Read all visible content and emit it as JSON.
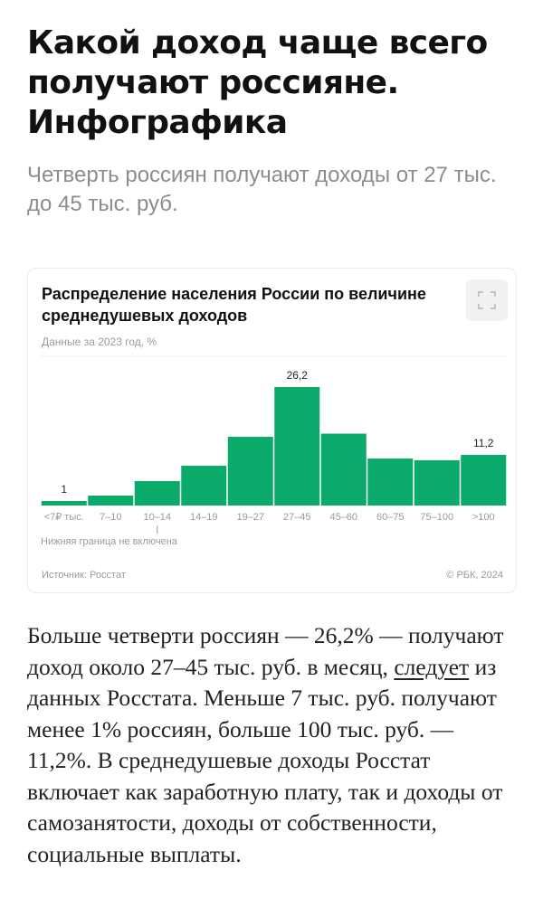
{
  "article": {
    "headline": "Какой доход чаще всего получают россияне. Инфографика",
    "lead": "Четверть россиян получают доходы от 27 тыс. до 45 тыс. руб.",
    "body_before_link": "Больше четверти россиян — 26,2% — получают доход около 27–45 тыс. руб. в месяц, ",
    "body_link": "следует",
    "body_after_link": " из данных Росстата. Меньше 7 тыс. руб. получают менее 1% россиян, больше 100 тыс. руб. — 11,2%. В среднедушевые доходы Росстат включает как заработную плату, так и доходы от самозанятости, доходы от собственности, социальные выплаты."
  },
  "card": {
    "title": "Распределение населения России по величине среднедушевых доходов",
    "subtitle": "Данные за 2023 год, %",
    "note": "Нижняя граница не включена",
    "source": "Источник: Росстат",
    "copyright": "© РБК, 2024",
    "expand_icon": "expand-icon"
  },
  "chart_data": {
    "type": "bar",
    "title": "Распределение населения России по величине среднедушевых доходов",
    "subtitle": "Данные за 2023 год, %",
    "categories": [
      "<7₽ тыс.",
      "7–10",
      "10–14",
      "14–19",
      "19–27",
      "27–45",
      "45–60",
      "60–75",
      "75–100",
      ">100"
    ],
    "values": [
      1,
      2.2,
      5.4,
      8.8,
      15.2,
      26.2,
      15.9,
      10.4,
      10.0,
      11.2
    ],
    "data_labels": [
      {
        "index": 0,
        "text": "1"
      },
      {
        "index": 5,
        "text": "26,2"
      },
      {
        "index": 9,
        "text": "11,2"
      }
    ],
    "ylim": [
      0,
      33
    ],
    "grid": true,
    "bar_color": "#0aab6a",
    "note": "Нижняя граница не включена"
  }
}
